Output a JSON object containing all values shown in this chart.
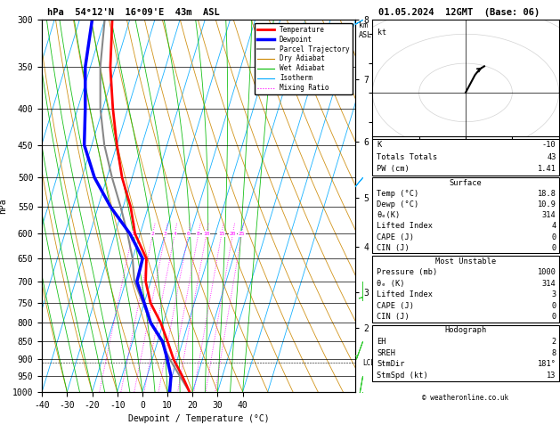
{
  "title_left": "54°12'N  16°09'E  43m  ASL",
  "title_right": "01.05.2024  12GMT  (Base: 06)",
  "xlabel": "Dewpoint / Temperature (°C)",
  "ylabel_left": "hPa",
  "pressure_levels": [
    300,
    350,
    400,
    450,
    500,
    550,
    600,
    650,
    700,
    750,
    800,
    850,
    900,
    950,
    1000
  ],
  "T_min": -40,
  "T_max": 40,
  "P_min": 300,
  "P_max": 1000,
  "skew_factor": 45,
  "background_color": "#ffffff",
  "legend_entries": [
    "Temperature",
    "Dewpoint",
    "Parcel Trajectory",
    "Dry Adiabat",
    "Wet Adiabat",
    "Isotherm",
    "Mixing Ratio"
  ],
  "legend_colors": [
    "#ff0000",
    "#0000ff",
    "#888888",
    "#cc8800",
    "#00bb00",
    "#00aaff",
    "#ff00ff"
  ],
  "legend_styles": [
    "solid",
    "solid",
    "solid",
    "solid",
    "solid",
    "solid",
    "dotted"
  ],
  "legend_widths": [
    2,
    2.5,
    1.5,
    0.8,
    0.8,
    0.8,
    0.8
  ],
  "temp_profile_p": [
    1000,
    950,
    900,
    850,
    800,
    750,
    700,
    650,
    600,
    550,
    500,
    450,
    400,
    350,
    300
  ],
  "temp_profile_t": [
    18.8,
    14.0,
    8.5,
    4.0,
    -1.0,
    -7.5,
    -12.0,
    -14.5,
    -22.0,
    -27.0,
    -34.0,
    -40.0,
    -46.0,
    -52.0,
    -57.0
  ],
  "dewp_profile_p": [
    1000,
    950,
    900,
    850,
    800,
    750,
    700,
    650,
    600,
    550,
    500,
    450,
    400,
    350,
    300
  ],
  "dewp_profile_t": [
    10.9,
    9.5,
    6.0,
    2.0,
    -5.0,
    -10.0,
    -15.5,
    -16.0,
    -24.0,
    -35.0,
    -45.0,
    -53.0,
    -57.0,
    -62.0,
    -65.0
  ],
  "parcel_profile_p": [
    1000,
    950,
    900,
    850,
    800,
    750,
    700,
    650,
    600,
    550,
    500,
    450,
    400,
    350,
    300
  ],
  "parcel_profile_t": [
    18.8,
    13.0,
    7.0,
    1.5,
    -5.0,
    -10.5,
    -16.5,
    -20.0,
    -25.0,
    -31.0,
    -38.0,
    -45.0,
    -51.0,
    -56.0,
    -60.0
  ],
  "mixing_ratios": [
    1,
    2,
    3,
    4,
    6,
    8,
    10,
    15,
    20,
    25
  ],
  "km_ticks": [
    2,
    3,
    4,
    5,
    6,
    7,
    8
  ],
  "km_pressures": [
    795,
    700,
    596,
    500,
    410,
    328,
    265
  ],
  "lcl_pressure": 910,
  "wb_p": [
    1000,
    950,
    850,
    700,
    500,
    300
  ],
  "wb_spd": [
    8,
    10,
    5,
    3,
    8,
    15
  ],
  "wb_dir": [
    180,
    190,
    200,
    180,
    220,
    240
  ],
  "wb_colors": [
    "#33cc33",
    "#33cc33",
    "#33cc33",
    "#33cc33",
    "#00aaff",
    "#00aaff"
  ],
  "stats": {
    "K": "-10",
    "Totals Totals": "43",
    "PW (cm)": "1.41",
    "surface_Temp": "18.8",
    "surface_Dewp": "10.9",
    "surface_theta_e": "314",
    "surface_LI": "4",
    "surface_CAPE": "0",
    "surface_CIN": "0",
    "mu_Pressure": "1000",
    "mu_theta_e": "314",
    "mu_LI": "3",
    "mu_CAPE": "0",
    "mu_CIN": "0",
    "hodo_EH": "2",
    "hodo_SREH": "8",
    "hodo_StmDir": "181",
    "hodo_StmSpd": "13"
  },
  "hodograph_u": [
    0,
    1,
    2,
    3,
    4
  ],
  "hodograph_v": [
    0,
    3,
    6,
    8,
    9
  ]
}
